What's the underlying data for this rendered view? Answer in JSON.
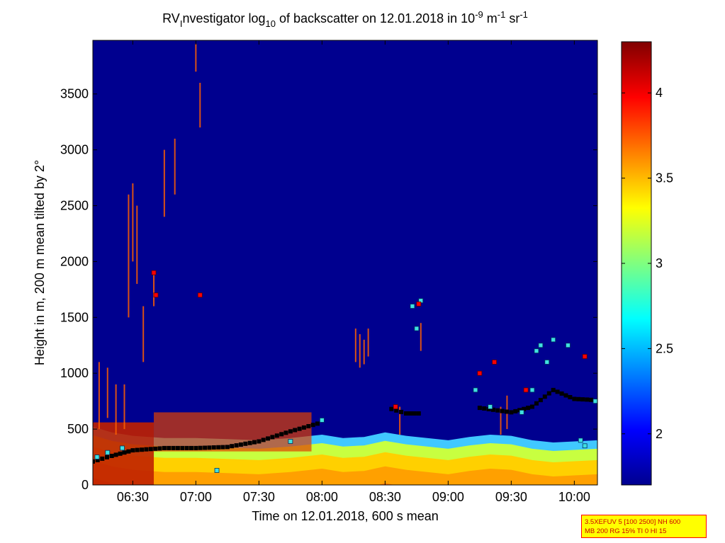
{
  "chart_data": {
    "type": "heatmap",
    "title": {
      "prefix": "RV",
      "sub1": "I",
      "part2": "nvestigator log",
      "sub2": "10",
      "part3": " of backscatter on 12.01.2018 in 10",
      "sup1": "-9",
      "part4": " m",
      "sup2": "-1",
      "part5": " sr",
      "sup3": "-1"
    },
    "xlabel": "Time on 12.01.2018, 600 s mean",
    "ylabel": "Height in m, 200 m mean tilted by 2°",
    "xlim": [
      "06:11",
      "10:11"
    ],
    "ylim": [
      0,
      3980
    ],
    "x_ticks": [
      "06:30",
      "07:00",
      "07:30",
      "08:00",
      "08:30",
      "09:00",
      "09:30",
      "10:00"
    ],
    "y_ticks": [
      0,
      500,
      1000,
      1500,
      2000,
      2500,
      3000,
      3500
    ],
    "colorbar": {
      "range": [
        1.7,
        4.3
      ],
      "ticks": [
        "2",
        "2.5",
        "3",
        "3.5",
        "4"
      ],
      "colormap": "jet"
    },
    "background_value": 1.75,
    "boundary_layer_top": [
      [
        "06:11",
        520
      ],
      [
        "06:20",
        470
      ],
      [
        "06:30",
        440
      ],
      [
        "06:45",
        420
      ],
      [
        "07:00",
        420
      ],
      [
        "07:15",
        410
      ],
      [
        "07:30",
        400
      ],
      [
        "07:45",
        420
      ],
      [
        "08:00",
        450
      ],
      [
        "08:10",
        420
      ],
      [
        "08:20",
        430
      ],
      [
        "08:30",
        470
      ],
      [
        "08:40",
        440
      ],
      [
        "08:50",
        420
      ],
      [
        "09:00",
        400
      ],
      [
        "09:10",
        430
      ],
      [
        "09:20",
        450
      ],
      [
        "09:30",
        440
      ],
      [
        "09:40",
        400
      ],
      [
        "09:50",
        380
      ],
      [
        "10:00",
        390
      ],
      [
        "10:11",
        400
      ]
    ],
    "cloud_base_series": [
      [
        "06:11",
        210
      ],
      [
        "06:20",
        260
      ],
      [
        "06:30",
        310
      ],
      [
        "06:45",
        330
      ],
      [
        "07:00",
        330
      ],
      [
        "07:15",
        340
      ],
      [
        "07:30",
        390
      ],
      [
        "07:45",
        480
      ],
      [
        "08:00",
        560
      ],
      [
        "08:33",
        680
      ],
      [
        "08:40",
        640
      ],
      [
        "08:48",
        640
      ],
      [
        "09:15",
        690
      ],
      [
        "09:30",
        650
      ],
      [
        "09:40",
        700
      ],
      [
        "09:50",
        850
      ],
      [
        "10:00",
        770
      ],
      [
        "10:10",
        760
      ]
    ],
    "cyan_markers": [
      [
        "06:13",
        250
      ],
      [
        "06:18",
        290
      ],
      [
        "06:25",
        330
      ],
      [
        "07:10",
        130
      ],
      [
        "07:45",
        390
      ],
      [
        "08:00",
        580
      ],
      [
        "08:43",
        1600
      ],
      [
        "08:45",
        1400
      ],
      [
        "08:47",
        1650
      ],
      [
        "09:13",
        850
      ],
      [
        "09:20",
        700
      ],
      [
        "09:35",
        650
      ],
      [
        "09:40",
        850
      ],
      [
        "09:42",
        1200
      ],
      [
        "09:44",
        1250
      ],
      [
        "09:47",
        1100
      ],
      [
        "09:50",
        1300
      ],
      [
        "09:57",
        1250
      ],
      [
        "10:03",
        400
      ],
      [
        "10:05",
        350
      ],
      [
        "10:10",
        750
      ]
    ],
    "red_markers": [
      [
        "06:40",
        1900
      ],
      [
        "06:41",
        1700
      ],
      [
        "07:02",
        1700
      ],
      [
        "08:35",
        700
      ],
      [
        "08:46",
        1620
      ],
      [
        "09:15",
        1000
      ],
      [
        "09:22",
        1100
      ],
      [
        "09:37",
        850
      ],
      [
        "10:05",
        1150
      ]
    ]
  },
  "info_box": {
    "line1": "3.5XEFUV 5 [100 2500] NH 600",
    "line2": "MB 200 RG 15% TI 0 HI 15"
  }
}
